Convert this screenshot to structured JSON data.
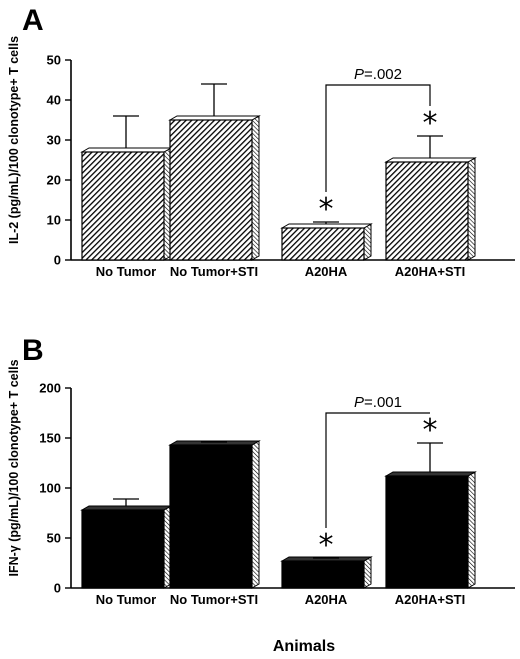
{
  "xlabel": "Animals",
  "chart_data": [
    {
      "type": "bar",
      "panel_label": "A",
      "categories": [
        "No Tumor",
        "No Tumor+STI",
        "A20HA",
        "A20HA+STI"
      ],
      "values": [
        27,
        35,
        8,
        24.5
      ],
      "errors": [
        9,
        9,
        1.5,
        6.5
      ],
      "ylabel": "IL-2 (pg/mL)/100 clonotype+ T cells",
      "ylim": [
        0,
        50
      ],
      "yticks": [
        0,
        10,
        20,
        30,
        40,
        50
      ],
      "fill": "hatched",
      "significance_markers": [
        "",
        "",
        "*",
        "*"
      ],
      "comparison": {
        "from": "A20HA",
        "to": "A20HA+STI",
        "p_label": "P",
        "p_value": "=.002"
      }
    },
    {
      "type": "bar",
      "panel_label": "B",
      "categories": [
        "No Tumor",
        "No Tumor+STI",
        "A20HA",
        "A20HA+STI"
      ],
      "values": [
        78,
        143,
        27,
        112
      ],
      "errors": [
        11,
        3,
        3,
        33
      ],
      "ylabel": "IFN-γ (pg/mL)/100 clonotype+ T cells",
      "ylim": [
        0,
        200
      ],
      "yticks": [
        0,
        50,
        100,
        150,
        200
      ],
      "fill": "#000000",
      "significance_markers": [
        "",
        "",
        "*",
        "*"
      ],
      "comparison": {
        "from": "A20HA",
        "to": "A20HA+STI",
        "p_label": "P",
        "p_value": "=.001"
      }
    }
  ]
}
